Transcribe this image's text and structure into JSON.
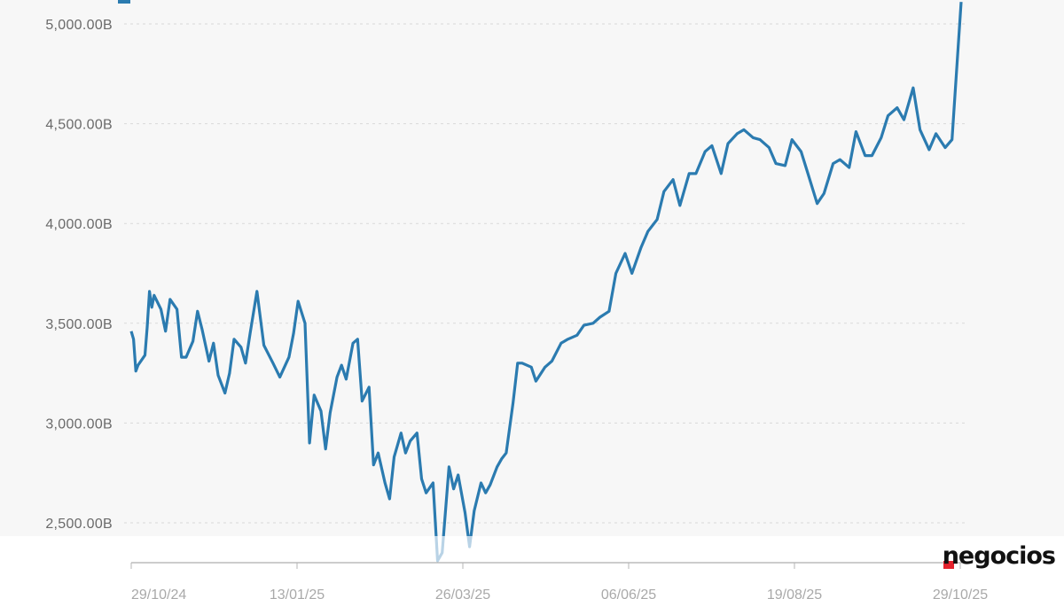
{
  "brand": {
    "logo_text": "negocios",
    "accent": "#e4222d"
  },
  "colors": {
    "line": "#2b7bb0",
    "line_faded": "#b9d3e6",
    "grid": "#d9d9d9"
  },
  "chart_data": {
    "type": "line",
    "title": "",
    "xlabel": "",
    "ylabel": "",
    "ylim": [
      2370,
      5110
    ],
    "yticks": [
      2500,
      3000,
      3500,
      4000,
      4500,
      5000
    ],
    "ytick_labels": [
      "2,500.00B",
      "3,000.00B",
      "3,500.00B",
      "4,000.00B",
      "4,500.00B",
      "5,000.00B"
    ],
    "xticks": [
      "29/10/24",
      "13/01/25",
      "26/03/25",
      "06/06/25",
      "19/08/25",
      "29/10/25"
    ],
    "grid": true,
    "legend": "top-left",
    "series": [
      {
        "x": [
          "2024-10-29",
          "2024-10-30",
          "2024-10-31",
          "2024-11-01",
          "2024-11-04",
          "2024-11-05",
          "2024-11-06",
          "2024-11-07",
          "2024-11-08",
          "2024-11-11",
          "2024-11-13",
          "2024-11-15",
          "2024-11-18",
          "2024-11-20",
          "2024-11-22",
          "2024-11-25",
          "2024-11-27",
          "2024-11-29",
          "2024-12-02",
          "2024-12-04",
          "2024-12-06",
          "2024-12-09",
          "2024-12-11",
          "2024-12-13",
          "2024-12-16",
          "2024-12-18",
          "2024-12-20",
          "2024-12-23",
          "2024-12-26",
          "2024-12-30",
          "2025-01-02",
          "2025-01-06",
          "2025-01-08",
          "2025-01-10",
          "2025-01-13",
          "2025-01-15",
          "2025-01-17",
          "2025-01-20",
          "2025-01-22",
          "2025-01-24",
          "2025-01-27",
          "2025-01-29",
          "2025-01-31",
          "2025-02-03",
          "2025-02-05",
          "2025-02-07",
          "2025-02-10",
          "2025-02-12",
          "2025-02-14",
          "2025-02-17",
          "2025-02-19",
          "2025-02-21",
          "2025-02-24",
          "2025-02-26",
          "2025-02-28",
          "2025-03-03",
          "2025-03-05",
          "2025-03-07",
          "2025-03-10",
          "2025-03-12",
          "2025-03-14",
          "2025-03-17",
          "2025-03-19",
          "2025-03-21",
          "2025-03-24",
          "2025-03-26",
          "2025-03-28",
          "2025-03-31",
          "2025-04-02",
          "2025-04-04",
          "2025-04-07",
          "2025-04-09",
          "2025-04-11",
          "2025-04-14",
          "2025-04-16",
          "2025-04-18",
          "2025-04-22",
          "2025-04-24",
          "2025-04-28",
          "2025-05-01",
          "2025-05-05",
          "2025-05-08",
          "2025-05-12",
          "2025-05-15",
          "2025-05-19",
          "2025-05-22",
          "2025-05-26",
          "2025-05-29",
          "2025-06-02",
          "2025-06-05",
          "2025-06-09",
          "2025-06-12",
          "2025-06-16",
          "2025-06-19",
          "2025-06-23",
          "2025-06-26",
          "2025-06-30",
          "2025-07-03",
          "2025-07-07",
          "2025-07-10",
          "2025-07-14",
          "2025-07-17",
          "2025-07-21",
          "2025-07-24",
          "2025-07-28",
          "2025-07-31",
          "2025-08-04",
          "2025-08-07",
          "2025-08-11",
          "2025-08-14",
          "2025-08-18",
          "2025-08-21",
          "2025-08-25",
          "2025-08-28",
          "2025-09-01",
          "2025-09-04",
          "2025-09-08",
          "2025-09-11",
          "2025-09-15",
          "2025-09-18",
          "2025-09-22",
          "2025-09-25",
          "2025-09-29",
          "2025-10-02",
          "2025-10-06",
          "2025-10-09",
          "2025-10-13",
          "2025-10-16",
          "2025-10-20",
          "2025-10-23",
          "2025-10-27"
        ],
        "y": [
          3460,
          3420,
          3260,
          3290,
          3340,
          3480,
          3660,
          3580,
          3640,
          3570,
          3460,
          3620,
          3570,
          3330,
          3330,
          3410,
          3560,
          3470,
          3310,
          3400,
          3240,
          3150,
          3250,
          3420,
          3380,
          3300,
          3450,
          3660,
          3390,
          3300,
          3230,
          3330,
          3450,
          3610,
          3500,
          2900,
          3140,
          3060,
          2870,
          3050,
          3230,
          3290,
          3220,
          3400,
          3420,
          3110,
          3180,
          2790,
          2850,
          2700,
          2620,
          2830,
          2950,
          2850,
          2910,
          2950,
          2720,
          2650,
          2700,
          2310,
          2350,
          2780,
          2670,
          2740,
          2550,
          2380,
          2560,
          2700,
          2650,
          2690,
          2780,
          2820,
          2850,
          3100,
          3300,
          3300,
          3280,
          3210,
          3280,
          3310,
          3400,
          3420,
          3440,
          3490,
          3500,
          3530,
          3560,
          3750,
          3850,
          3750,
          3880,
          3960,
          4020,
          4160,
          4220,
          4090,
          4250,
          4250,
          4360,
          4390,
          4250,
          4400,
          4450,
          4470,
          4430,
          4420,
          4380,
          4300,
          4290,
          4420,
          4360,
          4250,
          4100,
          4150,
          4300,
          4320,
          4280,
          4460,
          4340,
          4340,
          4430,
          4540,
          4580,
          4520,
          4680,
          4470,
          4370,
          4450,
          4380,
          4420,
          5110
        ]
      }
    ]
  }
}
